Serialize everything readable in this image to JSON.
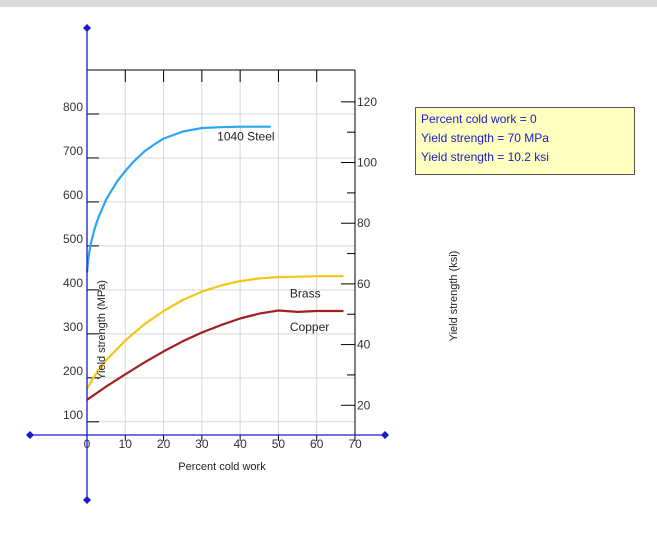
{
  "readout": {
    "lines": [
      "Percent cold work = 0",
      "Yield strength = 70 MPa",
      "Yield strength = 10.2 ksi"
    ]
  },
  "colors": {
    "axis": "#1a1acc",
    "grid": "#d8d8d8",
    "panel_bg": "#ffffc0",
    "steel": "#2aa4f4",
    "brass": "#f5c518",
    "copper": "#a31f1f"
  },
  "chart_data": {
    "type": "line",
    "xlabel": "Percent cold work",
    "ylabel": "Yield strength (MPa)",
    "y2label": "Yield strength (ksi)",
    "xlim": [
      0,
      70
    ],
    "ylim": [
      70,
      900
    ],
    "y2lim": [
      10.2,
      130.5
    ],
    "xticks": [
      0,
      10,
      20,
      30,
      40,
      50,
      60,
      70
    ],
    "yticks": [
      100,
      200,
      300,
      400,
      500,
      600,
      700,
      800
    ],
    "y2ticks": [
      20,
      40,
      60,
      80,
      100,
      120
    ],
    "grid": true,
    "series": [
      {
        "name": "1040 Steel",
        "color_key": "steel",
        "label_at": [
          34,
          740
        ],
        "x": [
          0,
          0.5,
          1,
          2,
          3,
          4,
          5,
          6,
          8,
          10,
          12,
          15,
          18,
          20,
          25,
          30,
          35,
          40,
          45,
          48
        ],
        "values": [
          440,
          480,
          505,
          540,
          565,
          585,
          605,
          620,
          648,
          670,
          690,
          715,
          733,
          744,
          760,
          768,
          770,
          771,
          771,
          771
        ]
      },
      {
        "name": "Brass",
        "color_key": "brass",
        "label_at": [
          53,
          383
        ],
        "x": [
          0,
          2,
          5,
          10,
          15,
          20,
          25,
          30,
          35,
          40,
          45,
          50,
          55,
          60,
          67
        ],
        "values": [
          175,
          205,
          240,
          285,
          322,
          352,
          377,
          396,
          410,
          420,
          426,
          429,
          430,
          431,
          431
        ]
      },
      {
        "name": "Copper",
        "color_key": "copper",
        "label_at": [
          53,
          306
        ],
        "x": [
          0,
          5,
          10,
          15,
          20,
          25,
          30,
          35,
          40,
          45,
          50,
          55,
          60,
          65,
          67
        ],
        "values": [
          150,
          180,
          208,
          235,
          260,
          283,
          303,
          320,
          335,
          346,
          353,
          350,
          352,
          352,
          352
        ]
      }
    ]
  }
}
